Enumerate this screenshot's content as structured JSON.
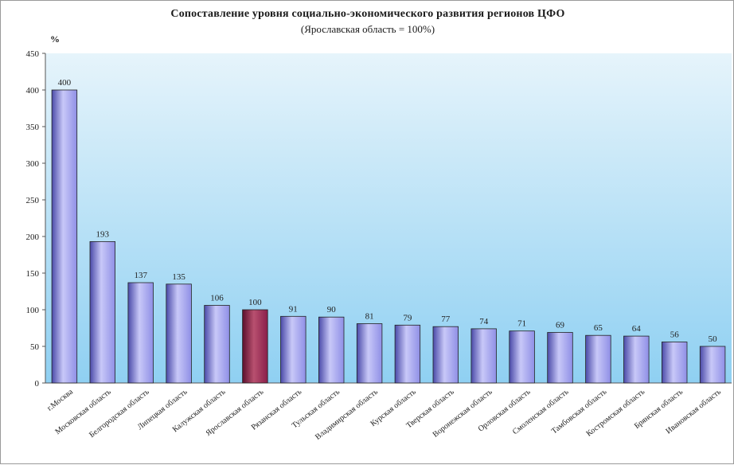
{
  "chart_data": {
    "type": "bar",
    "title": "Сопоставление уровня социально-экономического развития регионов ЦФО",
    "subtitle": "(Ярославская область = 100%)",
    "ylabel": "%",
    "xlabel": "",
    "ylim": [
      0,
      450
    ],
    "yticks": [
      0,
      50,
      100,
      150,
      200,
      250,
      300,
      350,
      400,
      450
    ],
    "grid": false,
    "categories": [
      "г.Москва",
      "Московская область",
      "Белгородская область",
      "Липецкая область",
      "Калужская область",
      "Ярославская область",
      "Рязанская область",
      "Тульская область",
      "Владимирская область",
      "Курская область",
      "Тверская область",
      "Воронежская область",
      "Орловская область",
      "Смоленская область",
      "Тамбовская область",
      "Костромская область",
      "Брянская область",
      "Ивановская область"
    ],
    "values": [
      400,
      193,
      137,
      135,
      106,
      100,
      91,
      90,
      81,
      79,
      77,
      74,
      71,
      69,
      65,
      64,
      56,
      50
    ],
    "highlight_index": 5,
    "colors": {
      "bar": "#8f8fe6",
      "bar_dark": "#4a4aa8",
      "bar_light": "#c8c8f8",
      "highlight": "#8a1f4a",
      "highlight_dark": "#5a0f2c",
      "highlight_light": "#b8506f",
      "background_top": "#e6f4fb",
      "background_bottom": "#8fd0f2"
    }
  }
}
